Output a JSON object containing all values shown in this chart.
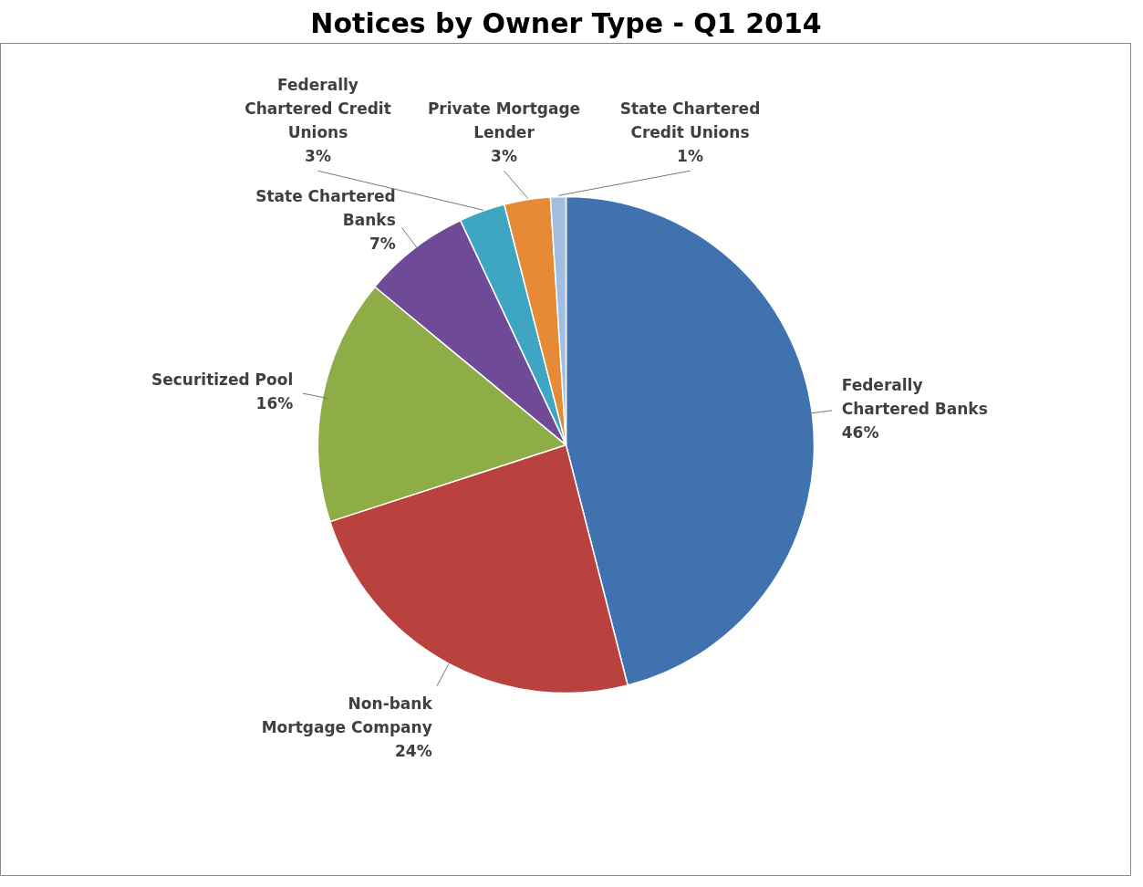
{
  "chart_data": {
    "type": "pie",
    "title": "Notices by Owner Type - Q1 2014",
    "categories": [
      "Federally Chartered Banks",
      "Non-bank Mortgage Company",
      "Securitized Pool",
      "State Chartered Banks",
      "Federally Chartered Credit Unions",
      "Private Mortgage Lender",
      "State Chartered Credit Unions"
    ],
    "values": [
      46,
      24,
      16,
      7,
      3,
      3,
      1
    ],
    "value_labels": [
      "46%",
      "24%",
      "16%",
      "7%",
      "3%",
      "3%",
      "1%"
    ],
    "colors": [
      "#4172b0",
      "#b9413e",
      "#8fad47",
      "#6f4b97",
      "#3ea6c3",
      "#e68a36",
      "#a2bde2"
    ]
  }
}
